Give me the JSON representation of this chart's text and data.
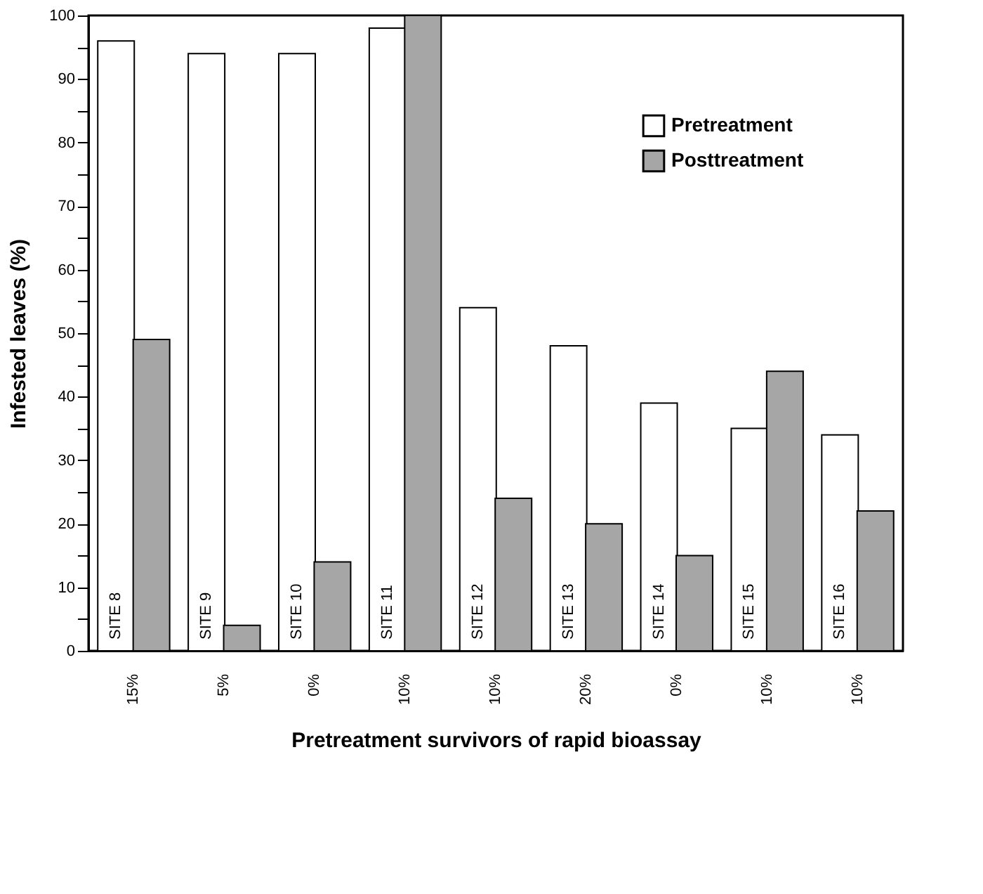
{
  "chart_data": {
    "type": "bar",
    "xlabel": "Pretreatment survivors of rapid bioassay",
    "ylabel": "Infested leaves (%)",
    "categories": [
      "15%",
      "5%",
      "0%",
      "10%",
      "10%",
      "20%",
      "0%",
      "10%",
      "10%"
    ],
    "series": [
      {
        "name": "Pretreatment",
        "color": "#ffffff",
        "values": [
          96,
          94,
          94,
          98,
          54,
          48,
          39,
          35,
          34
        ]
      },
      {
        "name": "Posttreatment",
        "color": "#a6a6a6",
        "values": [
          49,
          4,
          14,
          100,
          24,
          20,
          15,
          44,
          22
        ]
      }
    ],
    "annotations": [
      "SITE 8",
      "SITE 9",
      "SITE 10",
      "SITE 11",
      "SITE 12",
      "SITE 13",
      "SITE 14",
      "SITE 15",
      "SITE 16"
    ],
    "ylim": [
      0,
      100
    ],
    "yticks": [
      0,
      {
        "value": 5,
        "label": null
      },
      10,
      {
        "value": 15,
        "label": null
      },
      20,
      {
        "value": 25,
        "label": null
      },
      30,
      {
        "value": 35,
        "label": null
      },
      40,
      {
        "value": 45,
        "label": null
      },
      50,
      {
        "value": 55,
        "label": null
      },
      60,
      {
        "value": 65,
        "label": null
      },
      70,
      {
        "value": 75,
        "label": null
      },
      80,
      {
        "value": 85,
        "label": null
      },
      90,
      {
        "value": 95,
        "label": null
      },
      100
    ],
    "grid": false,
    "legend": "top right"
  }
}
